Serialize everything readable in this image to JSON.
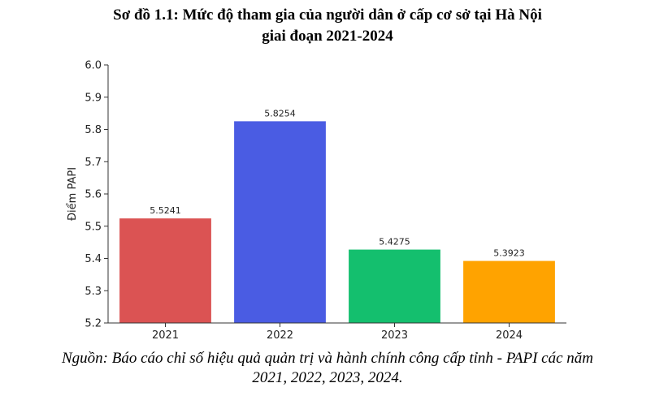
{
  "title": {
    "line1": "Sơ đồ 1.1: Mức độ tham gia của người dân ở cấp cơ sở tại Hà Nội",
    "line2": "giai đoạn 2021-2024"
  },
  "source": {
    "line1": "Nguồn: Báo cáo chỉ số hiệu quả quản trị và hành chính công cấp tỉnh - PAPI các năm",
    "line2": "2021, 2022, 2023, 2024."
  },
  "chart_data": {
    "type": "bar",
    "categories": [
      "2021",
      "2022",
      "2023",
      "2024"
    ],
    "values": [
      5.5241,
      5.8254,
      5.4275,
      5.3923
    ],
    "value_labels": [
      "5.5241",
      "5.8254",
      "5.4275",
      "5.3923"
    ],
    "colors": [
      "#db5353",
      "#4a5ce3",
      "#14bf6e",
      "#ffa300"
    ],
    "ylabel": "Điểm PAPI",
    "xlabel": "",
    "ylim": [
      5.2,
      6.0
    ],
    "yticks": [
      "5.2",
      "5.3",
      "5.4",
      "5.5",
      "5.6",
      "5.7",
      "5.8",
      "5.9",
      "6.0"
    ],
    "grid": false
  }
}
